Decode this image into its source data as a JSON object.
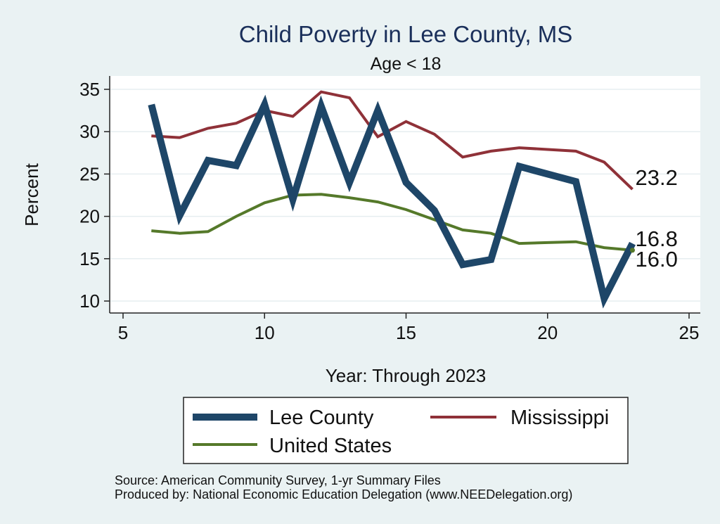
{
  "chart_data": {
    "type": "line",
    "title": "Child Poverty in Lee County, MS",
    "subtitle": "Age < 18",
    "xlabel": "Year: Through 2023",
    "ylabel": "Percent",
    "xlim": [
      5,
      25
    ],
    "ylim": [
      10,
      35
    ],
    "xticks": [
      "5",
      "10",
      "15",
      "20",
      "25"
    ],
    "yticks": [
      "10",
      "15",
      "20",
      "25",
      "30",
      "35"
    ],
    "grid": true,
    "legend_position": "bottom",
    "series": [
      {
        "name": "Lee County",
        "color": "#1e4668",
        "x": [
          6,
          7,
          8,
          9,
          10,
          11,
          12,
          13,
          14,
          15,
          16,
          17,
          18,
          19,
          20,
          21,
          22,
          23
        ],
        "values": [
          33.2,
          20.1,
          26.6,
          26.0,
          33.2,
          22.0,
          33.0,
          24.0,
          32.5,
          24.0,
          20.7,
          14.3,
          14.9,
          25.9,
          25.0,
          24.1,
          10.3,
          16.8
        ],
        "end_label": "16.8"
      },
      {
        "name": "Mississippi",
        "color": "#8f3138",
        "x": [
          6,
          7,
          8,
          9,
          10,
          11,
          12,
          13,
          14,
          15,
          16,
          17,
          18,
          19,
          20,
          21,
          22,
          23
        ],
        "values": [
          29.5,
          29.3,
          30.4,
          31.0,
          32.5,
          31.8,
          34.7,
          34.0,
          29.4,
          31.2,
          29.7,
          27.0,
          27.7,
          28.1,
          27.9,
          27.7,
          26.4,
          23.2
        ],
        "end_label": "23.2"
      },
      {
        "name": "United States",
        "color": "#55792a",
        "x": [
          6,
          7,
          8,
          9,
          10,
          11,
          12,
          13,
          14,
          15,
          16,
          17,
          18,
          19,
          20,
          21,
          22,
          23
        ],
        "values": [
          18.3,
          18.0,
          18.2,
          20.0,
          21.6,
          22.5,
          22.6,
          22.2,
          21.7,
          20.8,
          19.6,
          18.4,
          18.0,
          16.8,
          16.9,
          17.0,
          16.3,
          16.0
        ],
        "end_label": "16.0"
      }
    ]
  },
  "source": {
    "line1": "Source: American Community Survey, 1-yr Summary Files",
    "line2": "Produced by: National Economic Education Delegation (www.NEEDelegation.org)"
  }
}
